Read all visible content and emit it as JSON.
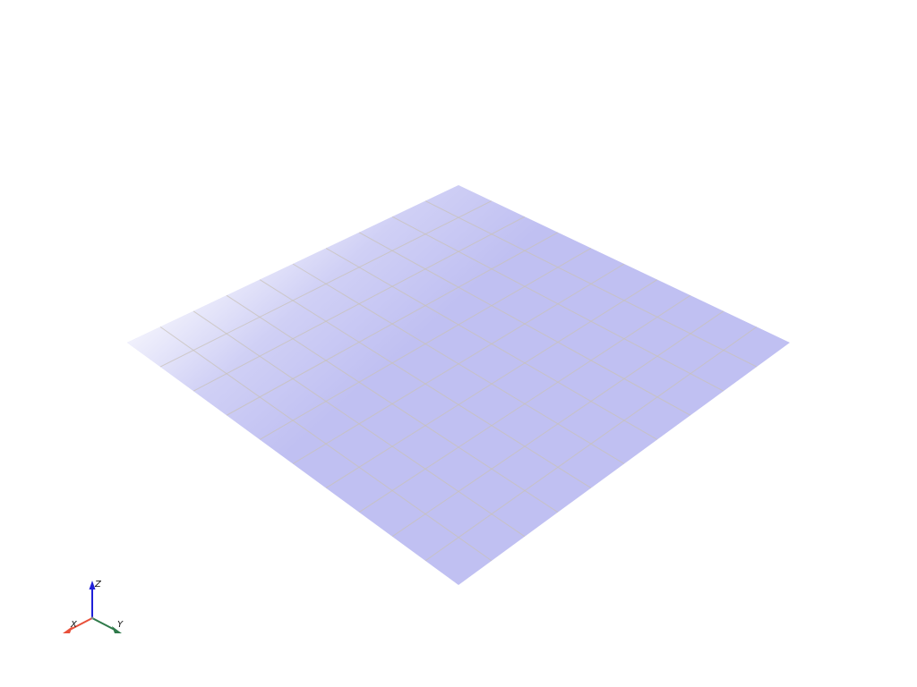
{
  "scene": {
    "background_color": "#ffffff",
    "plane": {
      "color": "#c0c0f2",
      "fade_color": "#ffffff",
      "grid_color": "#c8c2b8",
      "grid_divisions": 10
    }
  },
  "axes_widget": {
    "x": {
      "label": "X",
      "color": "#e8503a"
    },
    "y": {
      "label": "Y",
      "color": "#2f7a4a"
    },
    "z": {
      "label": "Z",
      "color": "#2020d8"
    }
  }
}
